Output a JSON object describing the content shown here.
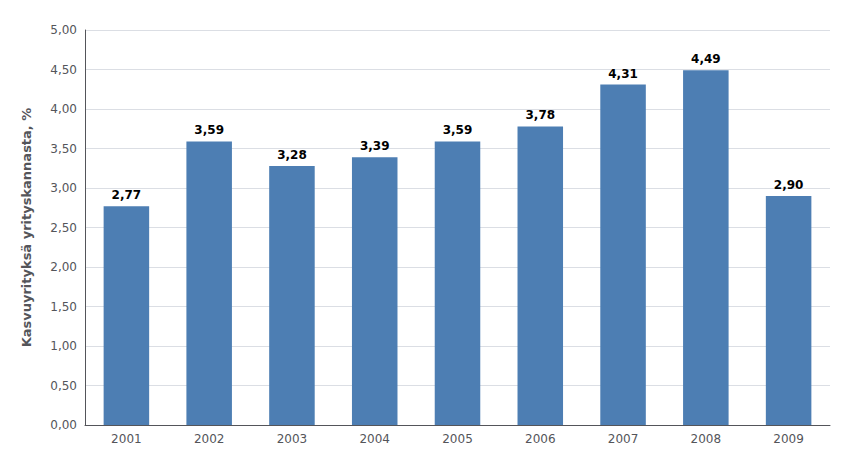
{
  "chart_data": {
    "type": "bar",
    "categories": [
      "2001",
      "2002",
      "2003",
      "2004",
      "2005",
      "2006",
      "2007",
      "2008",
      "2009"
    ],
    "values": [
      2.77,
      3.59,
      3.28,
      3.39,
      3.59,
      3.78,
      4.31,
      4.49,
      2.9
    ],
    "value_labels": [
      "2,77",
      "3,59",
      "3,28",
      "3,39",
      "3,59",
      "3,78",
      "4,31",
      "4,49",
      "2,90"
    ],
    "data_labels": true,
    "color": "#4d7eb3",
    "ylabel": "Kasvuyrityksä yrityskannasta, %",
    "ylim": [
      0.0,
      5.0
    ],
    "yticks": [
      {
        "value": 0.0,
        "label": "0,00"
      },
      {
        "value": 0.5,
        "label": "0,50"
      },
      {
        "value": 1.0,
        "label": "1,00"
      },
      {
        "value": 1.5,
        "label": "1,50"
      },
      {
        "value": 2.0,
        "label": "2,00"
      },
      {
        "value": 2.5,
        "label": "2,50"
      },
      {
        "value": 3.0,
        "label": "3,00"
      },
      {
        "value": 3.5,
        "label": "3,50"
      },
      {
        "value": 4.0,
        "label": "4,00"
      },
      {
        "value": 4.5,
        "label": "4,50"
      },
      {
        "value": 5.0,
        "label": "5,00"
      }
    ],
    "grid": true
  }
}
